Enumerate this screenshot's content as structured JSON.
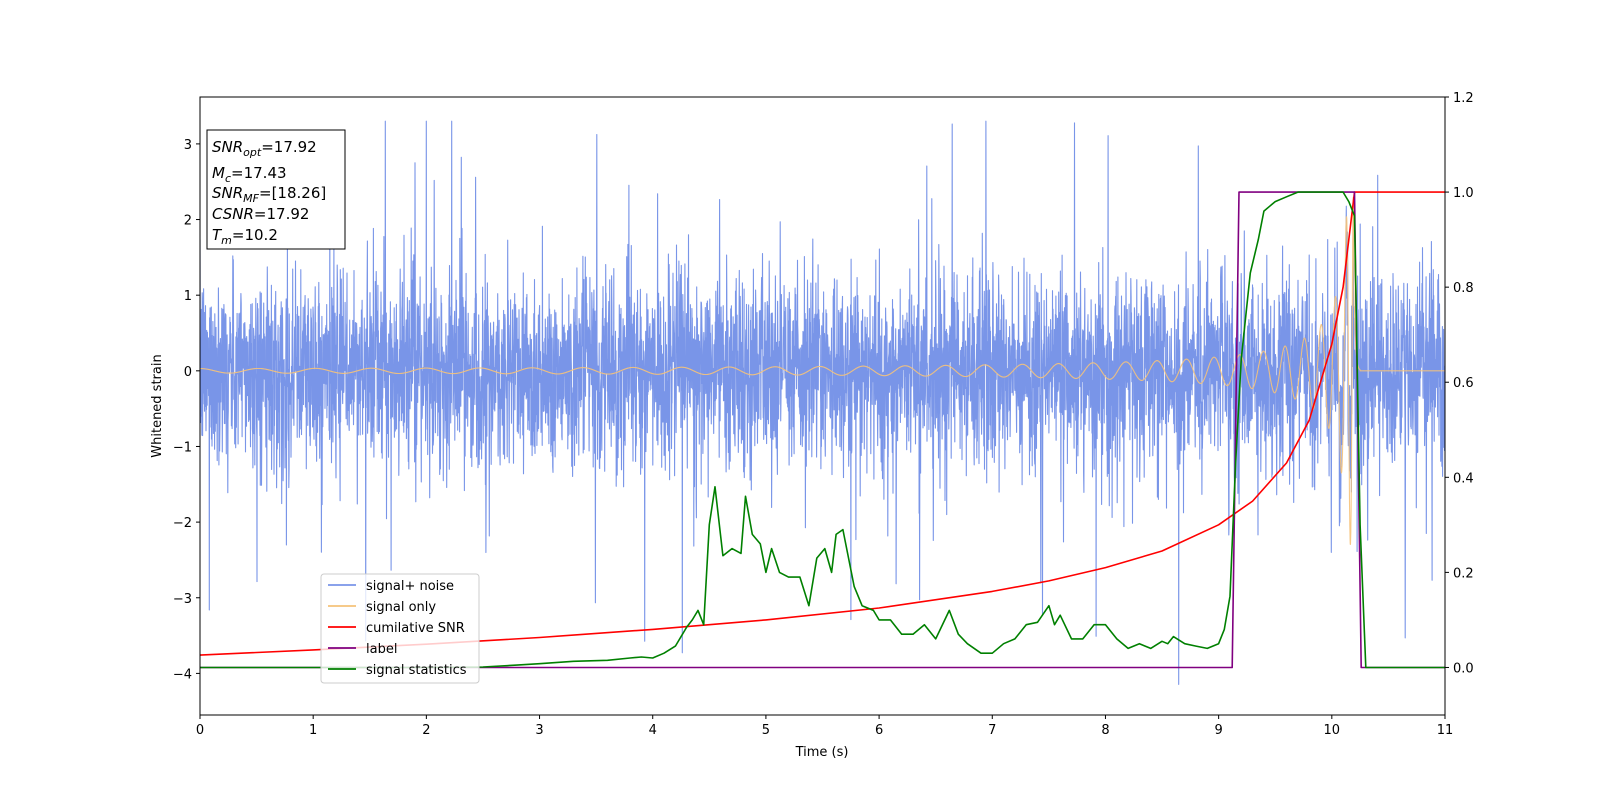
{
  "chart_data": {
    "type": "line",
    "xlabel": "Time (s)",
    "ylabel": "Whitened strain",
    "xlim": [
      0,
      11
    ],
    "ylim_left": [
      -4.55,
      3.62
    ],
    "ylim_right": [
      -0.1,
      1.2
    ],
    "x_ticks": [
      "0",
      "1",
      "2",
      "3",
      "4",
      "5",
      "6",
      "7",
      "8",
      "9",
      "10",
      "11"
    ],
    "y_ticks_left": [
      "3",
      "2",
      "1",
      "0",
      "−1",
      "−2",
      "−3",
      "−4"
    ],
    "y_ticks_right": [
      "1.2",
      "1.0",
      "0.8",
      "0.6",
      "0.4",
      "0.2",
      "0.0"
    ],
    "grid": false,
    "legend_position": "lower-left",
    "annotation": {
      "lines": [
        {
          "sym": "SNR",
          "sub": "opt",
          "value": "=17.92"
        },
        {
          "sym": "M",
          "sub": "c",
          "value": "=17.43"
        },
        {
          "sym": "SNR",
          "sub": "MF",
          "value": "=[18.26]"
        },
        {
          "sym": "CSNR",
          "sub": "",
          "value": "=17.92"
        },
        {
          "sym": "T",
          "sub": "m",
          "value": "=10.2"
        }
      ]
    },
    "series": [
      {
        "name": "signal+ noise",
        "color": "#7995e8",
        "axis": "left",
        "kind": "noise",
        "sigma": 1.0,
        "peak_max": 3.3,
        "peak_min": -4.2
      },
      {
        "name": "signal only",
        "color": "#f5c27a",
        "axis": "left",
        "kind": "chirp",
        "merger_time": 10.2,
        "ringdown_end": 10.25,
        "start_amplitude": 0.03,
        "max_amplitude": 2.3
      },
      {
        "name": "cumilative SNR",
        "color": "#ff0000",
        "axis": "right",
        "x": [
          0,
          1,
          2,
          3,
          4,
          5,
          6,
          7,
          7.5,
          8,
          8.5,
          9,
          9.3,
          9.6,
          9.8,
          10,
          10.1,
          10.2,
          10.21,
          11
        ],
        "y": [
          0.026,
          0.037,
          0.049,
          0.063,
          0.08,
          0.1,
          0.125,
          0.16,
          0.182,
          0.21,
          0.245,
          0.3,
          0.35,
          0.43,
          0.52,
          0.68,
          0.8,
          1.0,
          1.0,
          1.0
        ]
      },
      {
        "name": "label",
        "color": "#800080",
        "axis": "right",
        "x": [
          0,
          9.12,
          9.18,
          10.2,
          10.26,
          11
        ],
        "y": [
          0.0,
          0.0,
          1.0,
          1.0,
          0.0,
          0.0
        ]
      },
      {
        "name": "signal statistics",
        "color": "#008000",
        "axis": "right",
        "x": [
          0,
          0.5,
          1,
          1.5,
          2,
          2.5,
          2.8,
          3.0,
          3.3,
          3.6,
          3.8,
          3.9,
          4.0,
          4.1,
          4.2,
          4.3,
          4.35,
          4.4,
          4.45,
          4.5,
          4.55,
          4.62,
          4.7,
          4.78,
          4.82,
          4.88,
          4.95,
          5.0,
          5.05,
          5.12,
          5.2,
          5.3,
          5.38,
          5.45,
          5.52,
          5.58,
          5.62,
          5.68,
          5.78,
          5.85,
          5.95,
          6.0,
          6.1,
          6.2,
          6.3,
          6.4,
          6.5,
          6.62,
          6.7,
          6.78,
          6.9,
          7.0,
          7.1,
          7.2,
          7.3,
          7.4,
          7.5,
          7.55,
          7.6,
          7.7,
          7.8,
          7.9,
          8.0,
          8.1,
          8.2,
          8.3,
          8.4,
          8.5,
          8.55,
          8.6,
          8.7,
          8.8,
          8.9,
          9.0,
          9.05,
          9.1,
          9.15,
          9.2,
          9.28,
          9.35,
          9.4,
          9.45,
          9.5,
          9.6,
          9.7,
          9.8,
          9.9,
          10.0,
          10.1,
          10.15,
          10.2,
          10.25,
          10.3,
          10.5,
          11
        ],
        "y": [
          0.0,
          0.0,
          0.0,
          0.0,
          0.0,
          0.001,
          0.005,
          0.008,
          0.013,
          0.015,
          0.02,
          0.022,
          0.02,
          0.03,
          0.045,
          0.085,
          0.1,
          0.12,
          0.09,
          0.3,
          0.38,
          0.235,
          0.25,
          0.24,
          0.36,
          0.28,
          0.26,
          0.2,
          0.25,
          0.2,
          0.19,
          0.19,
          0.13,
          0.23,
          0.25,
          0.2,
          0.28,
          0.29,
          0.17,
          0.13,
          0.12,
          0.1,
          0.1,
          0.07,
          0.07,
          0.09,
          0.06,
          0.12,
          0.07,
          0.05,
          0.03,
          0.03,
          0.05,
          0.06,
          0.09,
          0.095,
          0.13,
          0.09,
          0.11,
          0.06,
          0.06,
          0.09,
          0.09,
          0.06,
          0.04,
          0.05,
          0.04,
          0.055,
          0.05,
          0.065,
          0.05,
          0.045,
          0.04,
          0.05,
          0.08,
          0.15,
          0.43,
          0.65,
          0.83,
          0.9,
          0.96,
          0.97,
          0.98,
          0.99,
          1.0,
          1.0,
          1.0,
          1.0,
          1.0,
          0.98,
          0.95,
          0.3,
          0.0,
          0.0,
          0.0
        ]
      }
    ]
  }
}
